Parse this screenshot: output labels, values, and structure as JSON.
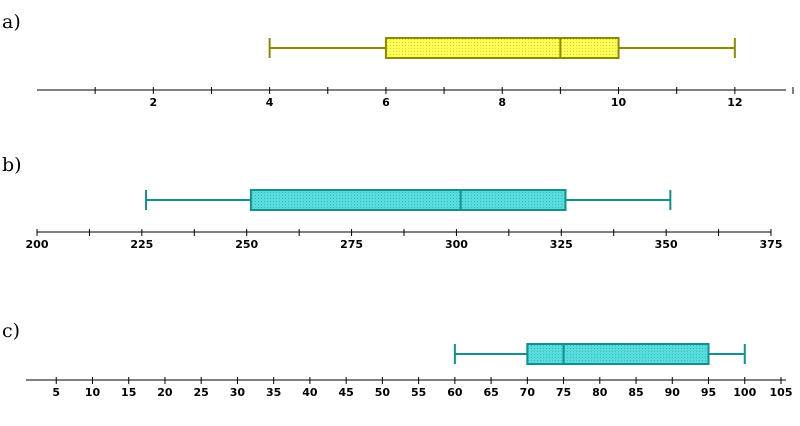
{
  "chart_data": [
    {
      "type": "boxplot",
      "label": "a)",
      "xlim": [
        0,
        13
      ],
      "ticks": [
        1,
        2,
        3,
        4,
        5,
        6,
        7,
        8,
        9,
        10,
        11,
        12,
        13
      ],
      "tick_labels": [
        "2",
        "4",
        "6",
        "8",
        "10",
        "12"
      ],
      "labeled_ticks": [
        2,
        4,
        6,
        8,
        10,
        12
      ],
      "min": 4,
      "q1": 6,
      "median": 9,
      "q3": 10,
      "max": 12,
      "fill": "#ffff55",
      "stroke": "#8b8b00"
    },
    {
      "type": "boxplot",
      "label": "b)",
      "xlim": [
        200,
        375
      ],
      "ticks": [
        200,
        212.5,
        225,
        237.5,
        250,
        262.5,
        275,
        287.5,
        300,
        312.5,
        325,
        337.5,
        350,
        362.5,
        375
      ],
      "tick_labels": [
        "200",
        "225",
        "250",
        "275",
        "300",
        "325",
        "350",
        "375"
      ],
      "labeled_ticks": [
        200,
        225,
        250,
        275,
        300,
        325,
        350,
        375
      ],
      "min": 226,
      "q1": 251,
      "median": 301,
      "q3": 326,
      "max": 351,
      "fill": "#55dddd",
      "stroke": "#138f8f"
    },
    {
      "type": "boxplot",
      "label": "c)",
      "xlim": [
        0,
        105
      ],
      "ticks": [
        5,
        10,
        15,
        20,
        25,
        30,
        35,
        40,
        45,
        50,
        55,
        60,
        65,
        70,
        75,
        80,
        85,
        90,
        95,
        100,
        105
      ],
      "tick_labels": [
        "5",
        "10",
        "15",
        "20",
        "25",
        "30",
        "35",
        "40",
        "45",
        "50",
        "55",
        "60",
        "65",
        "70",
        "75",
        "80",
        "85",
        "90",
        "95",
        "100",
        "105"
      ],
      "labeled_ticks": [
        5,
        10,
        15,
        20,
        25,
        30,
        35,
        40,
        45,
        50,
        55,
        60,
        65,
        70,
        75,
        80,
        85,
        90,
        95,
        100,
        105
      ],
      "min": 60,
      "q1": 70,
      "median": 75,
      "q3": 95,
      "max": 100,
      "fill": "#55dddd",
      "stroke": "#138f8f"
    }
  ]
}
